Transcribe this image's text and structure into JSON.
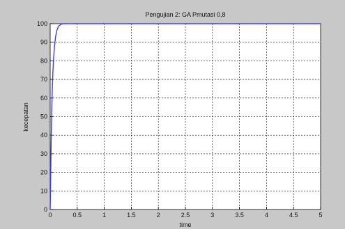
{
  "chart_data": {
    "type": "line",
    "title": "Pengujian 2: GA Pmutasi 0,8",
    "xlabel": "time",
    "ylabel": "kecepatan",
    "xlim": [
      0,
      5
    ],
    "ylim": [
      0,
      100
    ],
    "x_ticks": [
      "0",
      "0.5",
      "1",
      "1.5",
      "2",
      "2.5",
      "3",
      "3.5",
      "4",
      "4.5",
      "5"
    ],
    "y_ticks": [
      "0",
      "10",
      "20",
      "30",
      "40",
      "50",
      "60",
      "70",
      "80",
      "90",
      "100"
    ],
    "grid": true,
    "line_color": "#3a3aff",
    "series": [
      {
        "x": [
          0,
          0.005,
          0.01,
          0.02,
          0.03,
          0.04,
          0.05,
          0.06,
          0.08,
          0.1,
          0.12,
          0.15,
          0.2,
          0.25,
          0.3,
          1,
          2,
          3,
          4,
          5
        ],
        "values": [
          0,
          8,
          20,
          40,
          55,
          66,
          74,
          80,
          88,
          93,
          96,
          98.5,
          99.7,
          100,
          100,
          100,
          100,
          100,
          100,
          100
        ]
      }
    ]
  }
}
